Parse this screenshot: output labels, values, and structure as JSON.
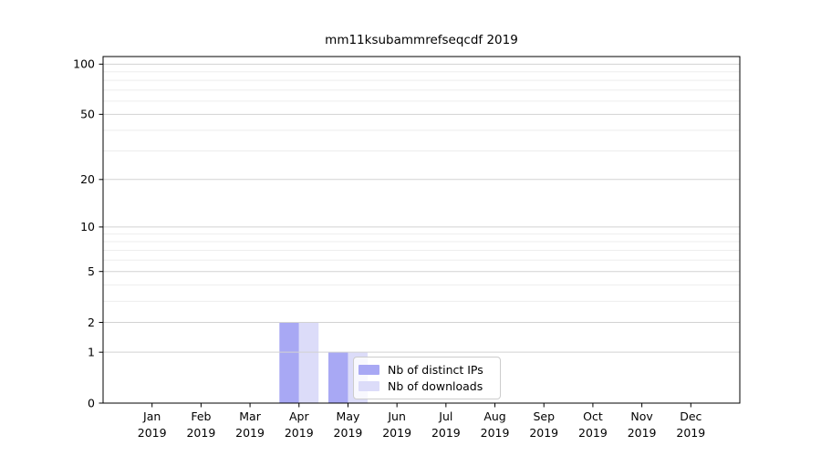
{
  "chart_data": {
    "type": "bar",
    "title": "mm11ksubammrefseqcdf 2019",
    "year": "2019",
    "categories": [
      "Jan",
      "Feb",
      "Mar",
      "Apr",
      "May",
      "Jun",
      "Jul",
      "Aug",
      "Sep",
      "Oct",
      "Nov",
      "Dec"
    ],
    "series": [
      {
        "name": "Nb of distinct IPs",
        "color": "#a8a8f4",
        "values": [
          0,
          0,
          0,
          2,
          1,
          0,
          0,
          0,
          0,
          0,
          0,
          0
        ]
      },
      {
        "name": "Nb of downloads",
        "color": "#dcdcf9",
        "values": [
          0,
          0,
          0,
          2,
          1,
          0,
          0,
          0,
          0,
          0,
          0,
          0
        ]
      }
    ],
    "y_axis": {
      "scale": "log1p",
      "ticks": [
        0,
        1,
        2,
        5,
        10,
        20,
        50,
        100
      ],
      "minor_ticks": [
        3,
        4,
        6,
        7,
        8,
        9,
        30,
        40,
        60,
        70,
        80,
        90
      ],
      "ylim": [
        0,
        111
      ]
    },
    "grid": true,
    "legend_position": "lower center"
  },
  "colors": {
    "bar_distinct_ips": "#a8a8f4",
    "bar_downloads": "#dcdcf9",
    "grid_major": "#d2d2d2",
    "grid_minor": "#ededed",
    "spine": "#000000",
    "legend_border": "#cccccc"
  }
}
